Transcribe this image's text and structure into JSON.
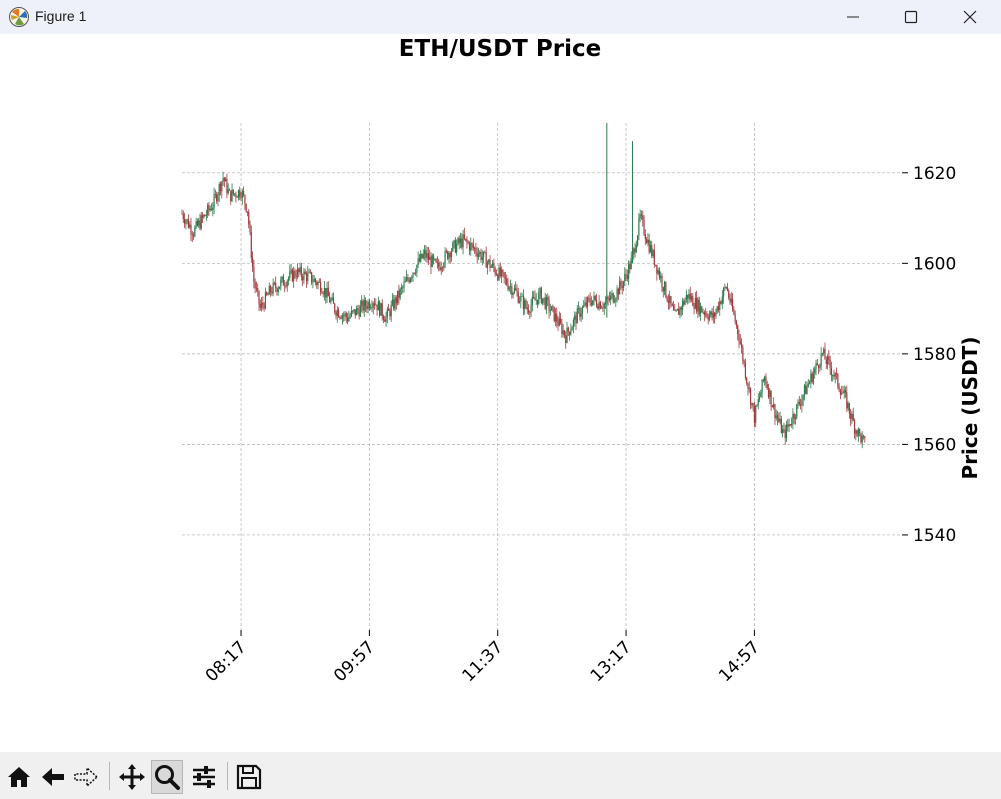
{
  "window": {
    "title": "Figure 1"
  },
  "toolbar": {
    "buttons": [
      "home-icon",
      "back-arrow-icon",
      "forward-arrow-icon",
      "pan-icon",
      "zoom-icon",
      "configure-subplots-icon",
      "save-icon"
    ],
    "active": "zoom-icon"
  },
  "colors": {
    "up": "#2b7a4b",
    "down": "#a3393c",
    "grid": "#b0b0b0"
  },
  "chart_data": {
    "type": "candlestick",
    "title": "ETH/USDT Price",
    "ylabel": "Price (USDT)",
    "xlabel": "",
    "y_axis_side": "right",
    "ylim": [
      1519,
      1631
    ],
    "yticks": [
      1540,
      1560,
      1580,
      1600,
      1620
    ],
    "xlim": [
      "07:31",
      "16:52"
    ],
    "xticks": [
      "08:17",
      "09:57",
      "11:37",
      "13:17",
      "14:57"
    ],
    "grid": true,
    "close_path": [
      [
        "07:31",
        1611
      ],
      [
        "07:40",
        1607
      ],
      [
        "07:55",
        1613
      ],
      [
        "08:03",
        1619
      ],
      [
        "08:08",
        1615
      ],
      [
        "08:17",
        1616
      ],
      [
        "08:22",
        1612
      ],
      [
        "08:27",
        1596
      ],
      [
        "08:32",
        1590
      ],
      [
        "08:40",
        1594
      ],
      [
        "08:50",
        1596
      ],
      [
        "09:00",
        1598
      ],
      [
        "09:10",
        1597
      ],
      [
        "09:20",
        1595
      ],
      [
        "09:30",
        1590
      ],
      [
        "09:40",
        1588
      ],
      [
        "09:50",
        1590
      ],
      [
        "10:00",
        1592
      ],
      [
        "10:10",
        1588
      ],
      [
        "10:20",
        1593
      ],
      [
        "10:30",
        1598
      ],
      [
        "10:40",
        1602
      ],
      [
        "10:50",
        1599
      ],
      [
        "11:00",
        1603
      ],
      [
        "11:10",
        1605
      ],
      [
        "11:20",
        1603
      ],
      [
        "11:30",
        1600
      ],
      [
        "11:40",
        1597
      ],
      [
        "11:50",
        1594
      ],
      [
        "12:00",
        1590
      ],
      [
        "12:10",
        1593
      ],
      [
        "12:20",
        1589
      ],
      [
        "12:30",
        1584
      ],
      [
        "12:40",
        1589
      ],
      [
        "12:50",
        1592
      ],
      [
        "13:00",
        1591
      ],
      [
        "13:08",
        1593
      ],
      [
        "13:15",
        1596
      ],
      [
        "13:22",
        1601
      ],
      [
        "13:28",
        1610
      ],
      [
        "13:35",
        1604
      ],
      [
        "13:45",
        1596
      ],
      [
        "13:55",
        1588
      ],
      [
        "14:05",
        1593
      ],
      [
        "14:15",
        1590
      ],
      [
        "14:25",
        1588
      ],
      [
        "14:35",
        1595
      ],
      [
        "14:45",
        1584
      ],
      [
        "14:50",
        1576
      ],
      [
        "14:57",
        1566
      ],
      [
        "15:05",
        1575
      ],
      [
        "15:12",
        1568
      ],
      [
        "15:20",
        1562
      ],
      [
        "15:30",
        1568
      ],
      [
        "15:40",
        1574
      ],
      [
        "15:50",
        1580
      ],
      [
        "15:58",
        1576
      ],
      [
        "16:08",
        1570
      ],
      [
        "16:15",
        1564
      ],
      [
        "16:23",
        1560
      ]
    ],
    "spikes": [
      {
        "time": "13:02",
        "high": 1632,
        "low": 1588
      },
      {
        "time": "13:22",
        "high": 1627,
        "low": 1600
      }
    ],
    "candle_interval_minutes": 1
  }
}
